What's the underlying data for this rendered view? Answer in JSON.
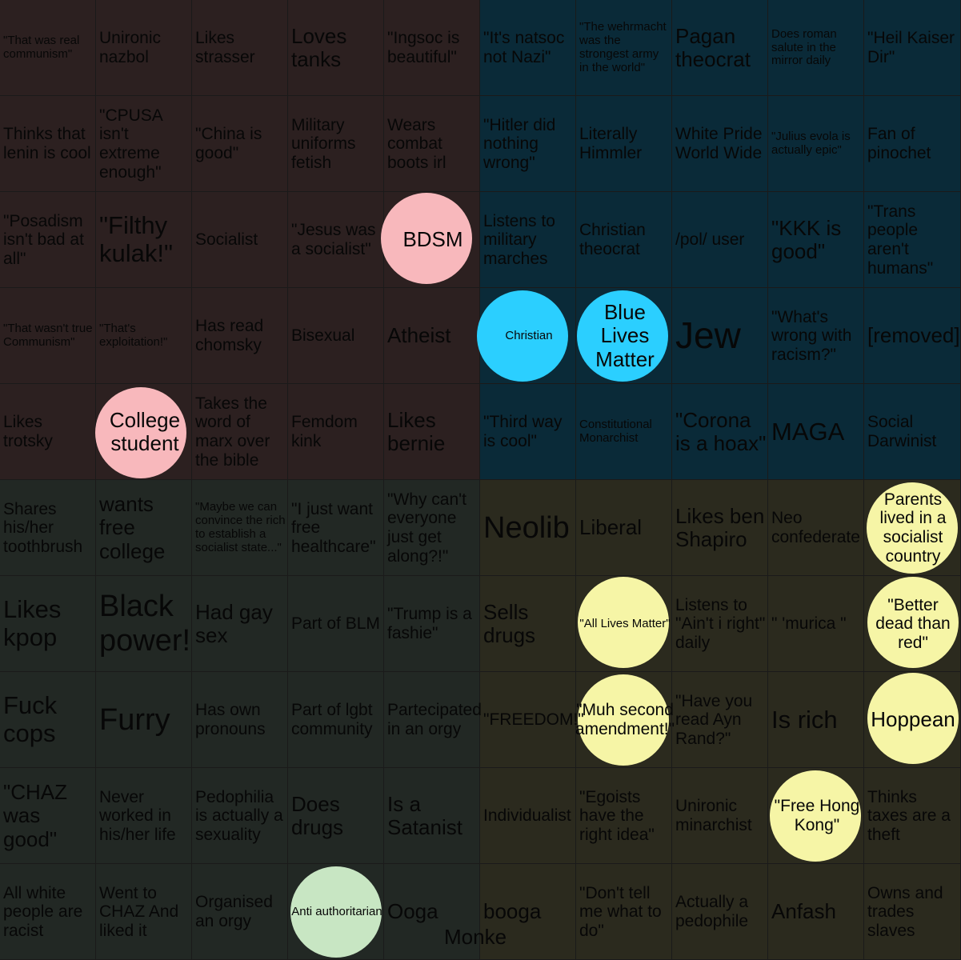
{
  "quadrant_colors": {
    "auth_left": "#2c2020",
    "auth_right": "#0a2a38",
    "lib_left": "#222824",
    "lib_right": "#2b2a1e"
  },
  "stamp_colors": {
    "pink": "#f8b8bc",
    "blue": "#2bcfff",
    "yellow": "#f6f5a6",
    "green": "#c8e6c3"
  },
  "cells": [
    "\"That was real communism\"",
    "Unironic nazbol",
    "Likes strasser",
    "Loves tanks",
    "\"Ingsoc is beautiful\"",
    "\"It's natsoc not Nazi\"",
    "\"The wehrmacht was the strongest army in the world\"",
    "Pagan theocrat",
    "Does roman salute in the mirror daily",
    "\"Heil Kaiser Dir\"",
    "Thinks that lenin is cool",
    "\"CPUSA isn't extreme enough\"",
    "\"China is good\"",
    "Military uniforms fetish",
    "Wears combat boots irl",
    "\"Hitler did nothing wrong\"",
    "Literally Himmler",
    "White Pride World Wide",
    "\"Julius evola is actually epic\"",
    "Fan of pinochet",
    "\"Posadism isn't bad at all\"",
    "\"Filthy kulak!\"",
    "Socialist",
    "\"Jesus was a socialist\"",
    "BDSM",
    "Listens to military marches",
    "Christian theocrat",
    "/pol/ user",
    "\"KKK is good\"",
    "\"Trans people aren't humans\"",
    "\"That wasn't true Communism\"",
    "\"That's exploitation!\"",
    "Has read chomsky",
    "Bisexual",
    "Atheist",
    "Christian",
    "Blue Lives Matter",
    "Jew",
    "\"What's wrong with racism?\"",
    "[removed]",
    "Likes trotsky",
    "College student",
    "Takes the word of marx over the bible",
    "Femdom kink",
    "Likes bernie",
    "\"Third way is cool\"",
    "Constitutional Monarchist",
    "\"Corona is a hoax\"",
    "MAGA",
    "Social Darwinist",
    "Shares his/her toothbrush",
    "wants free college",
    "\"Maybe we can convince the rich to establish a socialist state...\"",
    "\"I just want free healthcare\"",
    "\"Why can't everyone just get along?!\"",
    "Neolib",
    "Liberal",
    "Likes ben Shapiro",
    "Neo confederate",
    "Parents lived in a socialist country",
    "Likes kpop",
    "Black power!",
    "Had gay sex",
    "Part of BLM",
    "\"Trump is a fashie\"",
    "Sells drugs",
    "\"All Lives Matter\"",
    "Listens to \"Ain't i right\" daily",
    "\" 'murica \"",
    "\"Better dead than red\"",
    "Fuck cops",
    "Furry",
    "Has own pronouns",
    "Part of lgbt community",
    "Partecipated in an orgy",
    "\"FREEDOM!\"",
    "\"Muh second amendment!\"",
    "\"Have you read Ayn Rand?\"",
    "Is rich",
    "Hoppean",
    "\"CHAZ was good\"",
    "Never worked in his/her life",
    "Pedophilia is actually a sexuality",
    "Does drugs",
    "Is a Satanist",
    "Individualist",
    "\"Egoists have the right idea\"",
    "Unironic minarchist",
    "\"Free Hong Kong\"",
    "Thinks taxes are a theft",
    "All white people are racist",
    "Went to CHAZ And liked it",
    "Organised an orgy",
    "Anti authoritarian",
    "Ooga",
    "booga",
    "\"Don't tell me what to do\"",
    "Actually a pedophile",
    "Anfash",
    "Owns and trades slaves"
  ],
  "stray_text": "Monke"
}
